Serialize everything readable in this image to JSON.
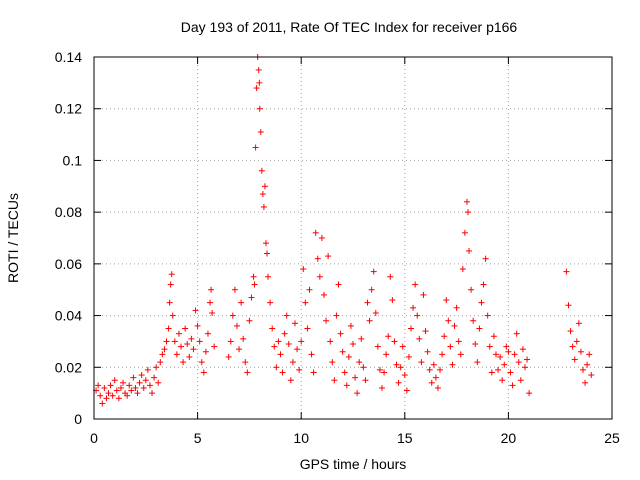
{
  "chart_data": {
    "type": "scatter",
    "title": "Day 193 of 2011, Rate Of TEC Index for receiver p166",
    "xlabel": "GPS time / hours",
    "ylabel": "ROTI / TECUs",
    "xlim": [
      0,
      25
    ],
    "ylim": [
      0,
      0.14
    ],
    "x_ticks": [
      0,
      5,
      10,
      15,
      20,
      25
    ],
    "x_tick_labels": [
      "0",
      "5",
      "10",
      "15",
      "20",
      "25"
    ],
    "y_ticks": [
      0,
      0.02,
      0.04,
      0.06,
      0.08,
      0.1,
      0.12,
      0.14
    ],
    "y_tick_labels": [
      "0",
      "0.02",
      "0.04",
      "0.06",
      "0.08",
      "0.1",
      "0.12",
      "0.14"
    ],
    "grid": true,
    "marker": "plus",
    "color": "#ff0000",
    "series": [
      {
        "points": [
          [
            0.1,
            0.011
          ],
          [
            0.2,
            0.013
          ],
          [
            0.3,
            0.009
          ],
          [
            0.4,
            0.006
          ],
          [
            0.5,
            0.012
          ],
          [
            0.6,
            0.008
          ],
          [
            0.7,
            0.01
          ],
          [
            0.8,
            0.013
          ],
          [
            0.9,
            0.009
          ],
          [
            1.0,
            0.015
          ],
          [
            1.1,
            0.011
          ],
          [
            1.2,
            0.008
          ],
          [
            1.3,
            0.012
          ],
          [
            1.4,
            0.014
          ],
          [
            1.5,
            0.01
          ],
          [
            1.6,
            0.009
          ],
          [
            1.7,
            0.013
          ],
          [
            1.8,
            0.011
          ],
          [
            1.9,
            0.016
          ],
          [
            2.0,
            0.012
          ],
          [
            2.1,
            0.01
          ],
          [
            2.2,
            0.014
          ],
          [
            2.3,
            0.017
          ],
          [
            2.4,
            0.012
          ],
          [
            2.5,
            0.015
          ],
          [
            2.6,
            0.019
          ],
          [
            2.7,
            0.013
          ],
          [
            2.8,
            0.01
          ],
          [
            2.9,
            0.016
          ],
          [
            3.0,
            0.02
          ],
          [
            3.1,
            0.014
          ],
          [
            3.2,
            0.022
          ],
          [
            3.3,
            0.025
          ],
          [
            3.4,
            0.027
          ],
          [
            3.5,
            0.03
          ],
          [
            3.6,
            0.035
          ],
          [
            3.65,
            0.045
          ],
          [
            3.7,
            0.052
          ],
          [
            3.75,
            0.056
          ],
          [
            3.8,
            0.04
          ],
          [
            3.9,
            0.03
          ],
          [
            4.0,
            0.025
          ],
          [
            4.1,
            0.033
          ],
          [
            4.2,
            0.028
          ],
          [
            4.3,
            0.022
          ],
          [
            4.4,
            0.035
          ],
          [
            4.5,
            0.029
          ],
          [
            4.6,
            0.024
          ],
          [
            4.7,
            0.031
          ],
          [
            4.8,
            0.027
          ],
          [
            4.9,
            0.042
          ],
          [
            5.0,
            0.036
          ],
          [
            5.1,
            0.03
          ],
          [
            5.2,
            0.022
          ],
          [
            5.3,
            0.018
          ],
          [
            5.4,
            0.026
          ],
          [
            5.5,
            0.033
          ],
          [
            5.6,
            0.045
          ],
          [
            5.65,
            0.05
          ],
          [
            5.7,
            0.041
          ],
          [
            5.8,
            0.028
          ],
          [
            6.5,
            0.024
          ],
          [
            6.6,
            0.03
          ],
          [
            6.7,
            0.04
          ],
          [
            6.8,
            0.05
          ],
          [
            6.9,
            0.036
          ],
          [
            7.0,
            0.027
          ],
          [
            7.1,
            0.045
          ],
          [
            7.2,
            0.031
          ],
          [
            7.3,
            0.022
          ],
          [
            7.4,
            0.018
          ],
          [
            7.5,
            0.038
          ],
          [
            7.6,
            0.047
          ],
          [
            7.7,
            0.055
          ],
          [
            7.75,
            0.052
          ],
          [
            7.8,
            0.105
          ],
          [
            7.85,
            0.128
          ],
          [
            7.9,
            0.14
          ],
          [
            7.95,
            0.135
          ],
          [
            7.98,
            0.13
          ],
          [
            8.0,
            0.12
          ],
          [
            8.05,
            0.111
          ],
          [
            8.1,
            0.096
          ],
          [
            8.15,
            0.087
          ],
          [
            8.2,
            0.082
          ],
          [
            8.25,
            0.09
          ],
          [
            8.3,
            0.068
          ],
          [
            8.35,
            0.064
          ],
          [
            8.4,
            0.055
          ],
          [
            8.5,
            0.045
          ],
          [
            8.6,
            0.035
          ],
          [
            8.7,
            0.028
          ],
          [
            8.8,
            0.02
          ],
          [
            8.9,
            0.03
          ],
          [
            9.0,
            0.025
          ],
          [
            9.1,
            0.018
          ],
          [
            9.2,
            0.033
          ],
          [
            9.3,
            0.04
          ],
          [
            9.4,
            0.029
          ],
          [
            9.5,
            0.015
          ],
          [
            9.6,
            0.022
          ],
          [
            9.7,
            0.037
          ],
          [
            9.8,
            0.027
          ],
          [
            9.9,
            0.019
          ],
          [
            10.0,
            0.03
          ],
          [
            10.1,
            0.058
          ],
          [
            10.2,
            0.045
          ],
          [
            10.3,
            0.035
          ],
          [
            10.4,
            0.05
          ],
          [
            10.5,
            0.025
          ],
          [
            10.6,
            0.018
          ],
          [
            10.7,
            0.072
          ],
          [
            10.8,
            0.062
          ],
          [
            10.9,
            0.055
          ],
          [
            11.0,
            0.07
          ],
          [
            11.1,
            0.048
          ],
          [
            11.2,
            0.038
          ],
          [
            11.3,
            0.063
          ],
          [
            11.4,
            0.03
          ],
          [
            11.5,
            0.022
          ],
          [
            11.6,
            0.015
          ],
          [
            11.7,
            0.04
          ],
          [
            11.8,
            0.052
          ],
          [
            11.9,
            0.033
          ],
          [
            12.0,
            0.026
          ],
          [
            12.1,
            0.018
          ],
          [
            12.2,
            0.013
          ],
          [
            12.3,
            0.024
          ],
          [
            12.4,
            0.036
          ],
          [
            12.5,
            0.029
          ],
          [
            12.6,
            0.016
          ],
          [
            12.7,
            0.01
          ],
          [
            12.8,
            0.022
          ],
          [
            12.9,
            0.031
          ],
          [
            13.0,
            0.02
          ],
          [
            13.1,
            0.015
          ],
          [
            13.2,
            0.045
          ],
          [
            13.3,
            0.038
          ],
          [
            13.4,
            0.05
          ],
          [
            13.5,
            0.057
          ],
          [
            13.6,
            0.041
          ],
          [
            13.7,
            0.028
          ],
          [
            13.8,
            0.019
          ],
          [
            13.9,
            0.012
          ],
          [
            14.0,
            0.018
          ],
          [
            14.1,
            0.025
          ],
          [
            14.2,
            0.032
          ],
          [
            14.3,
            0.055
          ],
          [
            14.4,
            0.046
          ],
          [
            14.5,
            0.03
          ],
          [
            14.6,
            0.021
          ],
          [
            14.7,
            0.014
          ],
          [
            14.8,
            0.02
          ],
          [
            14.9,
            0.028
          ],
          [
            15.0,
            0.017
          ],
          [
            15.1,
            0.011
          ],
          [
            15.2,
            0.024
          ],
          [
            15.3,
            0.035
          ],
          [
            15.4,
            0.043
          ],
          [
            15.5,
            0.052
          ],
          [
            15.6,
            0.04
          ],
          [
            15.7,
            0.031
          ],
          [
            15.8,
            0.022
          ],
          [
            15.9,
            0.048
          ],
          [
            16.0,
            0.034
          ],
          [
            16.1,
            0.026
          ],
          [
            16.2,
            0.019
          ],
          [
            16.3,
            0.014
          ],
          [
            16.4,
            0.021
          ],
          [
            16.5,
            0.016
          ],
          [
            16.6,
            0.012
          ],
          [
            16.7,
            0.019
          ],
          [
            16.8,
            0.025
          ],
          [
            16.9,
            0.032
          ],
          [
            17.0,
            0.046
          ],
          [
            17.1,
            0.038
          ],
          [
            17.2,
            0.028
          ],
          [
            17.3,
            0.021
          ],
          [
            17.4,
            0.036
          ],
          [
            17.5,
            0.043
          ],
          [
            17.6,
            0.03
          ],
          [
            17.7,
            0.025
          ],
          [
            17.8,
            0.058
          ],
          [
            17.9,
            0.072
          ],
          [
            18.0,
            0.084
          ],
          [
            18.05,
            0.08
          ],
          [
            18.1,
            0.065
          ],
          [
            18.2,
            0.05
          ],
          [
            18.3,
            0.038
          ],
          [
            18.4,
            0.029
          ],
          [
            18.5,
            0.022
          ],
          [
            18.6,
            0.035
          ],
          [
            18.7,
            0.045
          ],
          [
            18.8,
            0.052
          ],
          [
            18.9,
            0.062
          ],
          [
            19.0,
            0.04
          ],
          [
            19.1,
            0.028
          ],
          [
            19.2,
            0.018
          ],
          [
            19.3,
            0.032
          ],
          [
            19.4,
            0.025
          ],
          [
            19.5,
            0.019
          ],
          [
            19.6,
            0.024
          ],
          [
            19.7,
            0.015
          ],
          [
            19.8,
            0.021
          ],
          [
            19.9,
            0.028
          ],
          [
            20.0,
            0.026
          ],
          [
            20.1,
            0.018
          ],
          [
            20.2,
            0.013
          ],
          [
            20.3,
            0.025
          ],
          [
            20.4,
            0.033
          ],
          [
            20.5,
            0.022
          ],
          [
            20.6,
            0.015
          ],
          [
            20.7,
            0.027
          ],
          [
            20.8,
            0.02
          ],
          [
            20.9,
            0.023
          ],
          [
            21.0,
            0.01
          ],
          [
            22.8,
            0.057
          ],
          [
            22.9,
            0.044
          ],
          [
            23.0,
            0.034
          ],
          [
            23.1,
            0.028
          ],
          [
            23.2,
            0.023
          ],
          [
            23.3,
            0.03
          ],
          [
            23.4,
            0.037
          ],
          [
            23.5,
            0.026
          ],
          [
            23.6,
            0.019
          ],
          [
            23.7,
            0.014
          ],
          [
            23.8,
            0.021
          ],
          [
            23.9,
            0.025
          ],
          [
            24.0,
            0.017
          ]
        ]
      }
    ]
  }
}
